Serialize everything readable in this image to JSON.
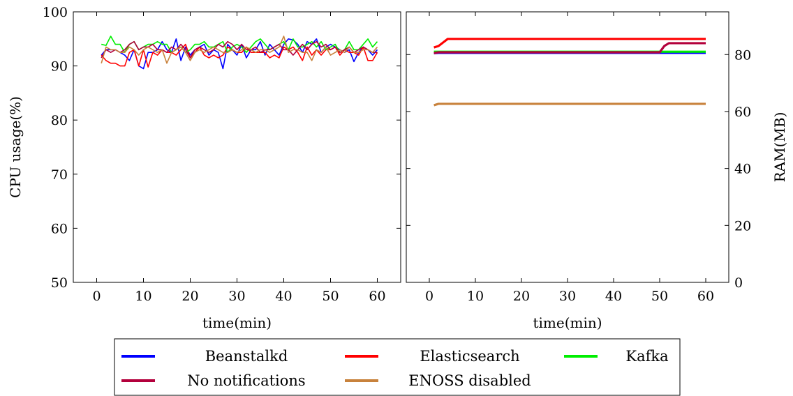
{
  "chart_data": [
    {
      "type": "line",
      "xlabel": "time(min)",
      "ylabel": "CPU usage(%)",
      "xlim": [
        -5,
        65
      ],
      "ylim": [
        50,
        100
      ],
      "xticks": [
        0,
        10,
        20,
        30,
        40,
        50,
        60
      ],
      "yticks": [
        50,
        60,
        70,
        80,
        90,
        100
      ],
      "y_axis_side": "left",
      "grid": false,
      "series": [
        {
          "name": "Beanstalkd",
          "color": "#0000ff",
          "x_start": 1,
          "x_step": 1,
          "values": [
            92,
            93,
            93,
            93,
            92.5,
            92,
            91,
            93,
            90,
            89.5,
            92.5,
            92.5,
            93,
            94.5,
            93,
            92.5,
            95,
            91,
            93.5,
            92,
            93,
            93.5,
            94,
            92,
            93,
            92.5,
            89.5,
            94,
            93,
            92,
            94,
            91.5,
            93,
            93,
            94.5,
            92,
            94,
            93,
            92,
            94,
            95,
            94.8,
            94,
            92.5,
            94.5,
            94,
            95,
            92.5,
            93.5,
            94,
            93.5,
            93,
            92.5,
            93,
            90.8,
            92.5,
            93.5,
            93,
            92,
            93
          ]
        },
        {
          "name": "Elasticsearch",
          "color": "#ff0000",
          "x_start": 1,
          "x_step": 1,
          "values": [
            92,
            91,
            90.5,
            90.5,
            90,
            90,
            92.5,
            93,
            90,
            93,
            89.8,
            92.5,
            92,
            93,
            92.5,
            92.5,
            92,
            93,
            94,
            91.5,
            92.5,
            93.5,
            92,
            91.5,
            92,
            91.5,
            92,
            93.5,
            93,
            92.5,
            92.5,
            93.5,
            92.5,
            92.5,
            92.5,
            92.5,
            91.5,
            92,
            91.5,
            93.5,
            93,
            93.5,
            92.5,
            91,
            93.5,
            92,
            93,
            92,
            93,
            93,
            93.5,
            92,
            93,
            92.5,
            92.5,
            92,
            93.5,
            91,
            91,
            92.5
          ]
        },
        {
          "name": "Kafka",
          "color": "#00ee00",
          "x_start": 1,
          "x_step": 1,
          "values": [
            94,
            93.8,
            95.5,
            94,
            94,
            92.5,
            94,
            94.5,
            93,
            93.5,
            94,
            94,
            94.5,
            94,
            94,
            92.5,
            93,
            93.5,
            92.5,
            93,
            94,
            94,
            94.5,
            93.5,
            93.5,
            94,
            94.5,
            92.5,
            93.5,
            94,
            93.5,
            92.5,
            93.5,
            94.5,
            95,
            94,
            93,
            93.5,
            94,
            94.5,
            93,
            95,
            93.5,
            93.5,
            94,
            94.5,
            93.5,
            94.5,
            93,
            93.5,
            94,
            92.5,
            93,
            94.5,
            93,
            93,
            94,
            95,
            93.5,
            94.5
          ]
        },
        {
          "name": "No notifications",
          "color": "#b3003c",
          "x_start": 1,
          "x_step": 1,
          "values": [
            91.5,
            93,
            92.5,
            93,
            92.5,
            93,
            94,
            94.5,
            93,
            93.5,
            93.5,
            94,
            93,
            93,
            92.5,
            93.5,
            93,
            94,
            93,
            91.5,
            93,
            93.5,
            93,
            92.5,
            93,
            94,
            93.5,
            94.5,
            94,
            93,
            94,
            93,
            93,
            93.5,
            92.5,
            93,
            93,
            93.5,
            94,
            93,
            93,
            92,
            93,
            94,
            93,
            94,
            94.5,
            93.5,
            94,
            93,
            93.5,
            92.5,
            93,
            93.5,
            92.5,
            93,
            93.5,
            93,
            92.5,
            92.5
          ]
        },
        {
          "name": "ENOSS disabled",
          "color": "#c8823c",
          "x_start": 1,
          "x_step": 1,
          "values": [
            90.5,
            93.5,
            93,
            93,
            92.5,
            92.5,
            93.5,
            93,
            92,
            93,
            93.5,
            93,
            92.5,
            93,
            90.5,
            92.5,
            93,
            93.5,
            92.5,
            91,
            92.5,
            93,
            92.5,
            93,
            93.5,
            93,
            92.5,
            92.5,
            93,
            92.5,
            93,
            93.5,
            93,
            92.5,
            93,
            93,
            92.5,
            93,
            93.5,
            95.5,
            92.5,
            93,
            93,
            92.5,
            92.5,
            91,
            93,
            92.5,
            93.5,
            92,
            92.5,
            93,
            92.5,
            93.5,
            92.5,
            92.5,
            93,
            93,
            92.5,
            93.5
          ]
        }
      ]
    },
    {
      "type": "line",
      "xlabel": "time(min)",
      "ylabel": "RAM(MB)",
      "xlim": [
        -5,
        65
      ],
      "ylim": [
        0,
        95
      ],
      "xticks": [
        0,
        10,
        20,
        30,
        40,
        50,
        60
      ],
      "yticks": [
        0,
        20,
        40,
        60,
        80
      ],
      "y_axis_side": "right",
      "grid": false,
      "series": [
        {
          "name": "Beanstalkd",
          "color": "#0000ff",
          "points": [
            [
              1,
              80.5
            ],
            [
              2,
              80.6
            ],
            [
              60,
              80.6
            ]
          ]
        },
        {
          "name": "Elasticsearch",
          "color": "#ff0000",
          "points": [
            [
              1,
              82.5
            ],
            [
              2,
              83
            ],
            [
              4,
              85.5
            ],
            [
              60,
              85.5
            ]
          ]
        },
        {
          "name": "Kafka",
          "color": "#00ee00",
          "points": [
            [
              1,
              81
            ],
            [
              2,
              81
            ],
            [
              60,
              81
            ]
          ]
        },
        {
          "name": "No notifications",
          "color": "#b3003c",
          "points": [
            [
              1,
              80.5
            ],
            [
              2,
              80.8
            ],
            [
              50,
              80.8
            ],
            [
              51,
              83
            ],
            [
              52,
              84
            ],
            [
              60,
              84
            ]
          ]
        },
        {
          "name": "ENOSS disabled",
          "color": "#c8823c",
          "points": [
            [
              1,
              62.2
            ],
            [
              2,
              62.7
            ],
            [
              60,
              62.7
            ]
          ]
        }
      ]
    }
  ],
  "legend": {
    "placement": "bottom",
    "entries": [
      {
        "label": "Beanstalkd",
        "color": "#0000ff"
      },
      {
        "label": "Elasticsearch",
        "color": "#ff0000"
      },
      {
        "label": "Kafka",
        "color": "#00ee00"
      },
      {
        "label": "No notifications",
        "color": "#b3003c"
      },
      {
        "label": "ENOSS disabled",
        "color": "#c8823c"
      }
    ]
  }
}
